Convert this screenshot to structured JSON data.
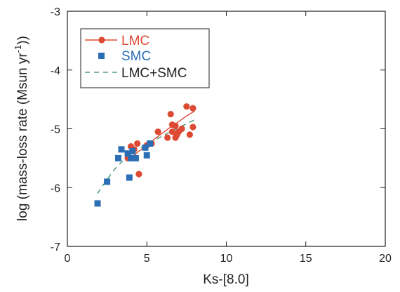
{
  "chart_data": {
    "type": "scatter",
    "xlabel": "Ks-[8.0]",
    "ylabel_parts": [
      "log (mass-loss rate (Msun yr",
      "-1",
      "))"
    ],
    "xlim": [
      0,
      20
    ],
    "ylim": [
      -7,
      -3
    ],
    "xticks": [
      0,
      5,
      10,
      15,
      20
    ],
    "yticks": [
      -3,
      -4,
      -5,
      -6,
      -7
    ],
    "grid": false,
    "legend_position": "top-left",
    "series": [
      {
        "name": "LMC",
        "color": "#dd4a33",
        "marker": "circle",
        "points": [
          [
            3.8,
            -5.5
          ],
          [
            4.0,
            -5.3
          ],
          [
            4.2,
            -5.35
          ],
          [
            4.3,
            -5.5
          ],
          [
            4.4,
            -5.25
          ],
          [
            4.5,
            -5.77
          ],
          [
            5.0,
            -5.28
          ],
          [
            5.3,
            -5.25
          ],
          [
            5.7,
            -5.05
          ],
          [
            6.3,
            -5.15
          ],
          [
            6.5,
            -4.75
          ],
          [
            6.6,
            -5.05
          ],
          [
            6.6,
            -4.93
          ],
          [
            6.8,
            -5.15
          ],
          [
            6.8,
            -4.95
          ],
          [
            6.9,
            -5.1
          ],
          [
            7.0,
            -5.05
          ],
          [
            7.2,
            -5.0
          ],
          [
            7.5,
            -4.62
          ],
          [
            7.7,
            -5.1
          ],
          [
            7.9,
            -4.97
          ],
          [
            7.9,
            -4.65
          ]
        ],
        "fit": [
          [
            3.9,
            -5.52
          ],
          [
            4.5,
            -5.38
          ],
          [
            5.0,
            -5.28
          ],
          [
            5.5,
            -5.17
          ],
          [
            6.0,
            -5.07
          ],
          [
            6.5,
            -4.97
          ],
          [
            7.0,
            -4.88
          ],
          [
            7.5,
            -4.78
          ],
          [
            8.0,
            -4.7
          ]
        ]
      },
      {
        "name": "SMC",
        "color": "#2b6eb5",
        "marker": "square",
        "points": [
          [
            1.9,
            -6.27
          ],
          [
            2.5,
            -5.9
          ],
          [
            3.2,
            -5.5
          ],
          [
            3.4,
            -5.35
          ],
          [
            3.8,
            -5.42
          ],
          [
            3.9,
            -5.83
          ],
          [
            4.0,
            -5.5
          ],
          [
            4.1,
            -5.38
          ],
          [
            4.3,
            -5.5
          ],
          [
            4.9,
            -5.32
          ],
          [
            5.0,
            -5.45
          ],
          [
            5.2,
            -5.25
          ]
        ]
      },
      {
        "name": "LMC+SMC",
        "color": "#2f8a60",
        "fit": [
          [
            1.9,
            -6.1
          ],
          [
            2.5,
            -5.86
          ],
          [
            3.0,
            -5.68
          ],
          [
            3.5,
            -5.54
          ],
          [
            4.0,
            -5.42
          ],
          [
            5.0,
            -5.26
          ],
          [
            6.0,
            -5.12
          ],
          [
            7.0,
            -4.98
          ],
          [
            8.0,
            -4.85
          ]
        ]
      }
    ]
  }
}
